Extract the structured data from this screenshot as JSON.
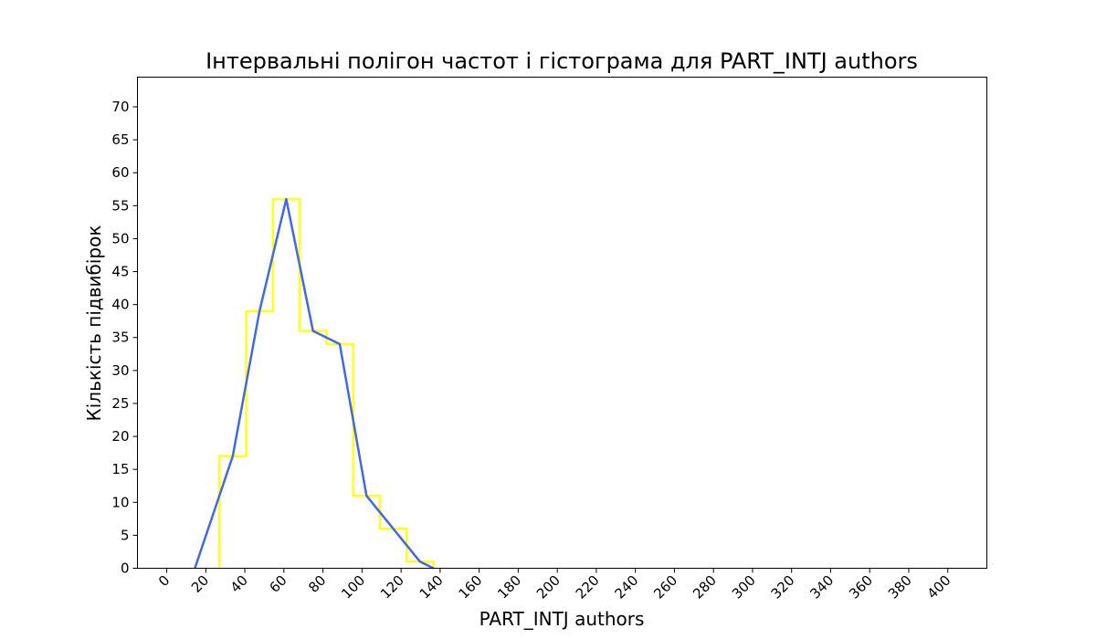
{
  "chart_data": {
    "type": "line",
    "title": "Інтервальні полігон частот і гістограма для PART_INTJ authors",
    "xlabel": "PART_INTJ authors",
    "ylabel": "Кількість підвибірок",
    "xlim": [
      -15,
      420
    ],
    "ylim": [
      0,
      74.5
    ],
    "x_ticks": [
      0,
      20,
      40,
      60,
      80,
      100,
      120,
      140,
      160,
      180,
      200,
      220,
      240,
      260,
      280,
      300,
      320,
      340,
      360,
      380,
      400
    ],
    "y_ticks": [
      0,
      5,
      10,
      15,
      20,
      25,
      30,
      35,
      40,
      45,
      50,
      55,
      60,
      65,
      70
    ],
    "grid": false,
    "histogram": {
      "name": "histogram",
      "color": "#ffff1a",
      "bin_edges": [
        27,
        40.7,
        54.4,
        68.1,
        81.8,
        95.5,
        109.2,
        122.9,
        136.6
      ],
      "counts": [
        17,
        39,
        56,
        36,
        34,
        11,
        6,
        1
      ]
    },
    "series": [
      {
        "name": "polygon",
        "color": "#4169e1",
        "x": [
          14.4,
          33.8,
          47.5,
          61.2,
          74.9,
          88.6,
          102.3,
          116.0,
          129.7,
          136.6
        ],
        "y": [
          0,
          17,
          39,
          56,
          36,
          34,
          11,
          6,
          1,
          0
        ]
      }
    ]
  }
}
